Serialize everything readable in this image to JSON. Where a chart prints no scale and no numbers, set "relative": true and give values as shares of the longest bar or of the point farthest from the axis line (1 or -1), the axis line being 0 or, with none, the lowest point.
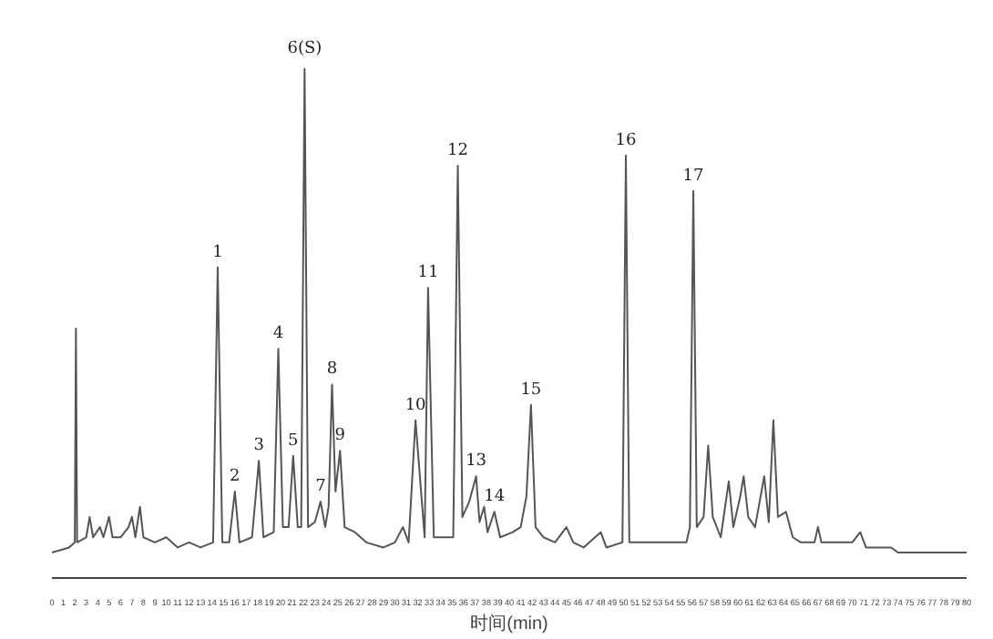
{
  "chart_data": {
    "type": "line",
    "relative": true,
    "xlabel": "时间(min)",
    "xlim": [
      0,
      80
    ],
    "xticks": [
      0,
      1,
      2,
      3,
      4,
      5,
      6,
      7,
      8,
      9,
      10,
      11,
      12,
      13,
      14,
      15,
      16,
      17,
      18,
      19,
      20,
      21,
      22,
      23,
      24,
      25,
      26,
      27,
      28,
      29,
      30,
      31,
      32,
      33,
      34,
      35,
      36,
      37,
      38,
      39,
      40,
      41,
      42,
      43,
      44,
      45,
      46,
      47,
      48,
      49,
      50,
      51,
      52,
      53,
      54,
      55,
      56,
      57,
      58,
      59,
      60,
      61,
      62,
      63,
      64,
      65,
      66,
      67,
      68,
      69,
      70,
      71,
      72,
      73,
      74,
      75,
      76,
      77,
      78,
      79,
      80
    ],
    "grid": false,
    "series": [
      {
        "color": "#555555",
        "x": [
          0,
          1.5,
          2.0,
          2.1,
          2.2,
          3,
          3.3,
          3.6,
          4.2,
          4.5,
          5,
          5.3,
          6,
          6.7,
          7,
          7.3,
          7.7,
          8,
          9,
          10,
          11,
          12,
          13,
          14.1,
          14.5,
          14.9,
          15.5,
          16.0,
          16.4,
          17.5,
          18.1,
          18.5,
          19.4,
          19.8,
          20.2,
          20.7,
          21.1,
          21.5,
          21.8,
          22.1,
          22.4,
          23.0,
          23.5,
          23.9,
          24.2,
          24.5,
          24.8,
          25.2,
          25.6,
          26.5,
          27.5,
          29,
          30,
          30.7,
          31.2,
          31.8,
          32.6,
          32.9,
          33.4,
          35.1,
          35.5,
          35.9,
          36.5,
          37.1,
          37.4,
          37.8,
          38.1,
          38.7,
          39.2,
          40.3,
          41.0,
          41.5,
          41.9,
          42.3,
          43.0,
          44.0,
          45.0,
          45.6,
          46.5,
          47.5,
          48.0,
          48.5,
          49.9,
          50.2,
          50.5,
          52,
          54,
          55.5,
          55.8,
          56.1,
          56.4,
          57,
          57.4,
          57.8,
          58.5,
          59.2,
          59.6,
          60.2,
          60.5,
          60.9,
          61.5,
          62.3,
          62.7,
          63.1,
          63.5,
          64.2,
          64.8,
          65.5,
          66.7,
          67,
          67.3,
          70,
          70.7,
          71.2,
          73.4,
          74,
          77,
          80
        ],
        "values": [
          0.05,
          0.06,
          0.07,
          0.49,
          0.07,
          0.08,
          0.12,
          0.08,
          0.1,
          0.08,
          0.12,
          0.08,
          0.08,
          0.1,
          0.12,
          0.08,
          0.14,
          0.08,
          0.07,
          0.08,
          0.06,
          0.07,
          0.06,
          0.07,
          0.61,
          0.07,
          0.07,
          0.17,
          0.07,
          0.08,
          0.23,
          0.08,
          0.09,
          0.45,
          0.1,
          0.1,
          0.24,
          0.1,
          0.1,
          1.0,
          0.1,
          0.11,
          0.15,
          0.1,
          0.14,
          0.38,
          0.17,
          0.25,
          0.1,
          0.09,
          0.07,
          0.06,
          0.07,
          0.1,
          0.07,
          0.31,
          0.08,
          0.57,
          0.08,
          0.08,
          0.81,
          0.12,
          0.15,
          0.2,
          0.11,
          0.14,
          0.09,
          0.13,
          0.08,
          0.09,
          0.1,
          0.16,
          0.34,
          0.1,
          0.08,
          0.07,
          0.1,
          0.07,
          0.06,
          0.08,
          0.09,
          0.06,
          0.07,
          0.83,
          0.07,
          0.07,
          0.07,
          0.07,
          0.1,
          0.76,
          0.1,
          0.12,
          0.26,
          0.12,
          0.08,
          0.19,
          0.1,
          0.16,
          0.2,
          0.12,
          0.1,
          0.2,
          0.11,
          0.31,
          0.12,
          0.13,
          0.08,
          0.07,
          0.07,
          0.1,
          0.07,
          0.07,
          0.09,
          0.06,
          0.06,
          0.05,
          0.05,
          0.05
        ]
      }
    ],
    "annotations": [
      {
        "text": "1",
        "x": 14.5,
        "y": 0.61
      },
      {
        "text": "2",
        "x": 16.0,
        "y": 0.17
      },
      {
        "text": "3",
        "x": 18.1,
        "y": 0.23
      },
      {
        "text": "4",
        "x": 19.8,
        "y": 0.45
      },
      {
        "text": "5",
        "x": 21.1,
        "y": 0.24
      },
      {
        "text": "6(S)",
        "x": 22.1,
        "y": 1.0
      },
      {
        "text": "7",
        "x": 23.5,
        "y": 0.15
      },
      {
        "text": "8",
        "x": 24.5,
        "y": 0.38
      },
      {
        "text": "9",
        "x": 25.2,
        "y": 0.25
      },
      {
        "text": "10",
        "x": 31.8,
        "y": 0.31
      },
      {
        "text": "11",
        "x": 32.9,
        "y": 0.57
      },
      {
        "text": "12",
        "x": 35.5,
        "y": 0.81
      },
      {
        "text": "13",
        "x": 37.1,
        "y": 0.2
      },
      {
        "text": "14",
        "x": 38.7,
        "y": 0.13
      },
      {
        "text": "15",
        "x": 41.9,
        "y": 0.34
      },
      {
        "text": "16",
        "x": 50.2,
        "y": 0.83
      },
      {
        "text": "17",
        "x": 56.1,
        "y": 0.76
      }
    ]
  }
}
